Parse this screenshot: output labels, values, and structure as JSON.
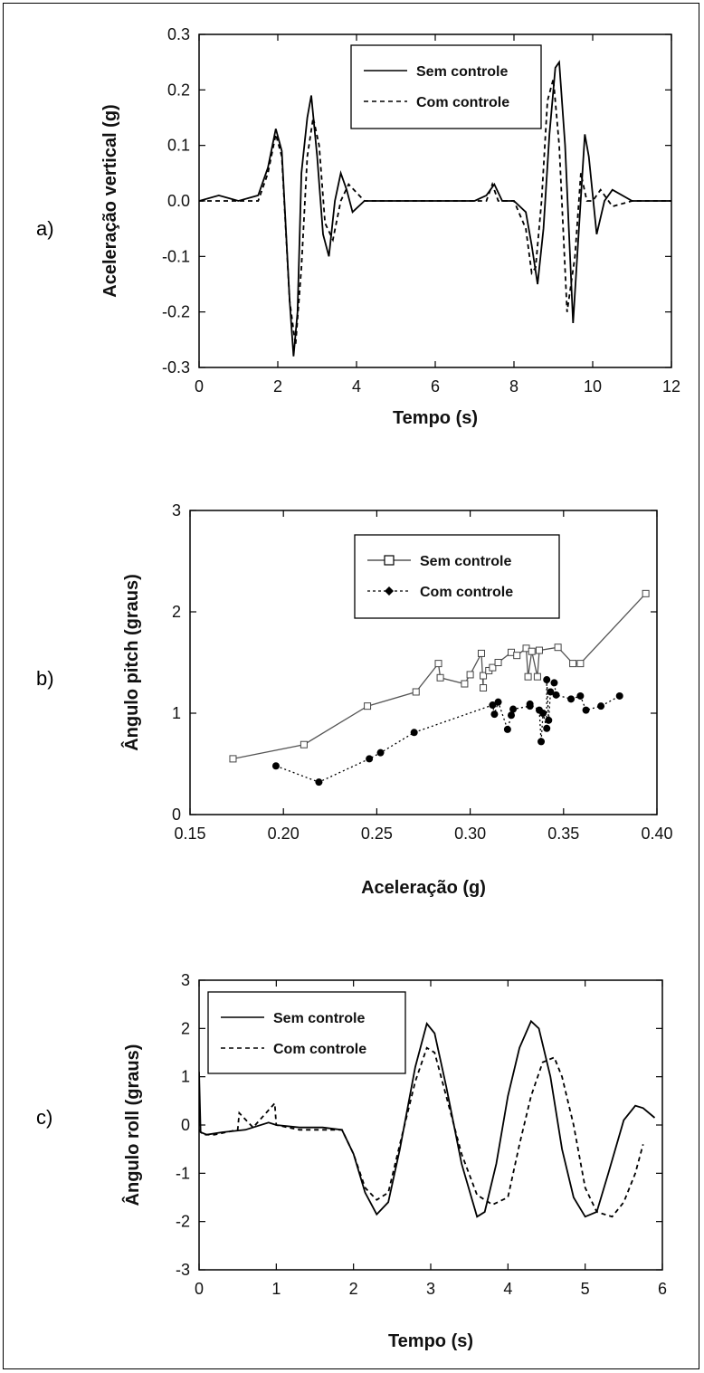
{
  "panels": {
    "a": {
      "label": "a)"
    },
    "b": {
      "label": "b)"
    },
    "c": {
      "label": "c)"
    }
  },
  "chart_data": [
    {
      "type": "line",
      "title": "",
      "xlabel": "Tempo (s)",
      "ylabel": "Aceleração vertical (g)",
      "xlim": [
        0,
        12
      ],
      "ylim": [
        -0.3,
        0.3
      ],
      "xticks": [
        0,
        2,
        4,
        6,
        8,
        10,
        12
      ],
      "yticks": [
        -0.3,
        -0.2,
        -0.1,
        0.0,
        0.1,
        0.2,
        0.3
      ],
      "ytick_labels": [
        "-0.3",
        "-0.2",
        "-0.1",
        "0.0",
        "0.1",
        "0.2",
        "0.3"
      ],
      "legend_position": "top-right",
      "series": [
        {
          "name": "Sem controle",
          "style": "solid",
          "x": [
            0,
            0.5,
            1,
            1.5,
            1.75,
            1.95,
            2.1,
            2.3,
            2.4,
            2.5,
            2.6,
            2.75,
            2.85,
            3.0,
            3.15,
            3.3,
            3.45,
            3.6,
            3.75,
            3.9,
            4.2,
            5,
            6,
            7,
            7.3,
            7.5,
            7.7,
            8,
            8.3,
            8.45,
            8.6,
            8.75,
            8.9,
            9.05,
            9.15,
            9.3,
            9.5,
            9.65,
            9.8,
            9.9,
            10.1,
            10.3,
            10.5,
            11,
            11.5,
            12
          ],
          "y": [
            0.0,
            0.01,
            0.0,
            0.01,
            0.06,
            0.13,
            0.09,
            -0.18,
            -0.28,
            -0.2,
            0.05,
            0.15,
            0.19,
            0.08,
            -0.06,
            -0.1,
            0.0,
            0.05,
            0.02,
            -0.02,
            0.0,
            0.0,
            0.0,
            0.0,
            0.01,
            0.03,
            0.0,
            0.0,
            -0.02,
            -0.08,
            -0.15,
            -0.05,
            0.12,
            0.24,
            0.25,
            0.1,
            -0.22,
            -0.05,
            0.12,
            0.08,
            -0.06,
            0.0,
            0.02,
            0.0,
            0.0,
            0.0
          ]
        },
        {
          "name": "Com controle",
          "style": "dashed",
          "x": [
            0,
            0.5,
            1,
            1.5,
            1.75,
            1.95,
            2.1,
            2.3,
            2.45,
            2.6,
            2.75,
            2.9,
            3.05,
            3.2,
            3.4,
            3.6,
            3.8,
            4.2,
            5,
            6,
            7,
            7.3,
            7.45,
            7.6,
            8,
            8.3,
            8.45,
            8.55,
            8.7,
            8.85,
            9.0,
            9.15,
            9.35,
            9.55,
            9.7,
            9.85,
            10.0,
            10.2,
            10.5,
            11,
            12
          ],
          "y": [
            0.0,
            0.0,
            0.0,
            0.0,
            0.05,
            0.12,
            0.08,
            -0.18,
            -0.26,
            -0.12,
            0.08,
            0.15,
            0.1,
            -0.04,
            -0.07,
            0.0,
            0.03,
            0.0,
            0.0,
            0.0,
            0.0,
            0.0,
            0.03,
            0.0,
            0.0,
            -0.05,
            -0.13,
            -0.12,
            0.0,
            0.18,
            0.22,
            0.1,
            -0.2,
            -0.1,
            0.05,
            0.0,
            0.0,
            0.02,
            -0.01,
            0.0,
            0.0
          ]
        }
      ]
    },
    {
      "type": "scatter",
      "title": "",
      "xlabel": "Aceleração (g)",
      "ylabel": "Ângulo pitch (graus)",
      "xlim": [
        0.15,
        0.4
      ],
      "ylim": [
        0,
        3
      ],
      "xticks": [
        0.15,
        0.2,
        0.25,
        0.3,
        0.35,
        0.4
      ],
      "xtick_labels": [
        "0.15",
        "0.20",
        "0.25",
        "0.30",
        "0.35",
        "0.40"
      ],
      "yticks": [
        0,
        1,
        2,
        3
      ],
      "legend_position": "top-right",
      "series": [
        {
          "name": "Sem controle",
          "marker": "open-square",
          "line": "solid",
          "x": [
            0.173,
            0.211,
            0.245,
            0.271,
            0.283,
            0.284,
            0.297,
            0.3,
            0.306,
            0.307,
            0.307,
            0.31,
            0.312,
            0.315,
            0.322,
            0.325,
            0.33,
            0.331,
            0.333,
            0.336,
            0.337,
            0.347,
            0.355,
            0.359,
            0.394
          ],
          "y": [
            0.55,
            0.69,
            1.07,
            1.21,
            1.49,
            1.35,
            1.29,
            1.38,
            1.59,
            1.25,
            1.37,
            1.42,
            1.45,
            1.5,
            1.6,
            1.57,
            1.64,
            1.36,
            1.61,
            1.36,
            1.62,
            1.65,
            1.49,
            1.49,
            2.18
          ]
        },
        {
          "name": "Com controle",
          "marker": "filled-circle",
          "line": "dotted",
          "x": [
            0.196,
            0.219,
            0.246,
            0.252,
            0.27,
            0.312,
            0.313,
            0.315,
            0.32,
            0.322,
            0.323,
            0.332,
            0.332,
            0.337,
            0.338,
            0.339,
            0.341,
            0.341,
            0.342,
            0.343,
            0.345,
            0.346,
            0.354,
            0.359,
            0.362,
            0.37,
            0.38
          ],
          "y": [
            0.48,
            0.32,
            0.55,
            0.61,
            0.81,
            1.08,
            0.99,
            1.11,
            0.84,
            0.98,
            1.04,
            1.07,
            1.09,
            1.03,
            0.72,
            1.0,
            0.85,
            1.33,
            0.93,
            1.21,
            1.3,
            1.18,
            1.14,
            1.17,
            1.03,
            1.07,
            1.17
          ]
        }
      ]
    },
    {
      "type": "line",
      "title": "",
      "xlabel": "Tempo (s)",
      "ylabel": "Ângulo roll (graus)",
      "xlim": [
        0,
        6
      ],
      "ylim": [
        -3,
        3
      ],
      "xticks": [
        0,
        1,
        2,
        3,
        4,
        5,
        6
      ],
      "yticks": [
        -3,
        -2,
        -1,
        0,
        1,
        2,
        3
      ],
      "legend_position": "top-left",
      "series": [
        {
          "name": "Sem controle",
          "style": "solid",
          "x": [
            0,
            0.02,
            0.1,
            0.3,
            0.6,
            0.9,
            1.0,
            1.3,
            1.6,
            1.85,
            2.0,
            2.15,
            2.3,
            2.45,
            2.6,
            2.8,
            2.95,
            3.05,
            3.2,
            3.4,
            3.6,
            3.7,
            3.85,
            4.0,
            4.15,
            4.3,
            4.4,
            4.55,
            4.7,
            4.85,
            5.0,
            5.15,
            5.3,
            5.5,
            5.65,
            5.75,
            5.9
          ],
          "y": [
            1.1,
            -0.15,
            -0.2,
            -0.15,
            -0.1,
            0.05,
            0.0,
            -0.05,
            -0.05,
            -0.1,
            -0.6,
            -1.4,
            -1.85,
            -1.6,
            -0.5,
            1.2,
            2.1,
            1.9,
            0.8,
            -0.8,
            -1.9,
            -1.8,
            -0.8,
            0.6,
            1.6,
            2.15,
            2.0,
            1.0,
            -0.5,
            -1.5,
            -1.9,
            -1.8,
            -1.0,
            0.1,
            0.4,
            0.35,
            0.15
          ]
        },
        {
          "name": "Com controle",
          "style": "dashed",
          "x": [
            0,
            0.05,
            0.2,
            0.5,
            0.52,
            0.7,
            0.98,
            1.0,
            1.3,
            1.6,
            1.85,
            2.0,
            2.15,
            2.3,
            2.45,
            2.6,
            2.8,
            2.95,
            3.05,
            3.2,
            3.4,
            3.6,
            3.8,
            4.0,
            4.15,
            4.3,
            4.45,
            4.6,
            4.7,
            4.85,
            5.0,
            5.15,
            5.35,
            5.5,
            5.65,
            5.75
          ],
          "y": [
            -0.1,
            -0.2,
            -0.2,
            -0.1,
            0.25,
            -0.05,
            0.45,
            0.0,
            -0.1,
            -0.1,
            -0.1,
            -0.6,
            -1.3,
            -1.55,
            -1.4,
            -0.4,
            0.9,
            1.6,
            1.5,
            0.6,
            -0.6,
            -1.45,
            -1.65,
            -1.5,
            -0.4,
            0.6,
            1.3,
            1.4,
            1.0,
            0.0,
            -1.3,
            -1.8,
            -1.9,
            -1.6,
            -1.0,
            -0.4
          ]
        }
      ]
    }
  ]
}
